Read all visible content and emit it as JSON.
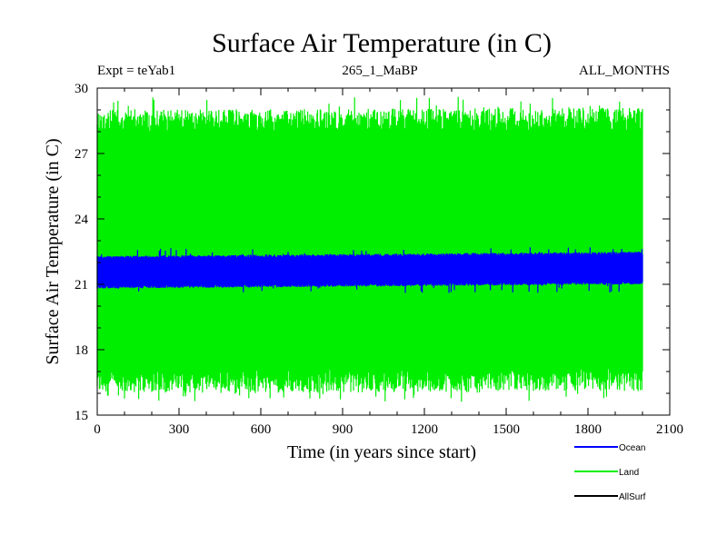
{
  "chart_data": {
    "type": "line",
    "title": "Surface Air Temperature (in C)",
    "subtitle_left": "Expt = teYab1",
    "subtitle_center": "265_1_MaBP",
    "subtitle_right": "ALL_MONTHS",
    "xlabel": "Time (in years since start)",
    "ylabel": "Surface Air Temperature (in C)",
    "xlim": [
      0,
      2100
    ],
    "ylim": [
      15,
      30
    ],
    "x_ticks": [
      0,
      300,
      600,
      900,
      1200,
      1500,
      1800,
      2100
    ],
    "x_tick_labels": [
      "0",
      "300",
      "600",
      "900",
      "1200",
      "1500",
      "1800",
      "2100"
    ],
    "y_ticks": [
      15,
      18,
      21,
      24,
      27,
      30
    ],
    "y_tick_labels": [
      "15",
      "18",
      "21",
      "24",
      "27",
      "30"
    ],
    "x_minor_step": 100,
    "y_minor_step": 1,
    "grid": false,
    "legend_position": "bottom-right",
    "series": [
      {
        "name": "Land",
        "color": "#00ee00",
        "x_range": [
          0,
          2000
        ],
        "band_low": 16.0,
        "band_high": 29.0,
        "extreme_low": 15.6,
        "extreme_high": 29.7,
        "drift": 0.1
      },
      {
        "name": "Ocean",
        "color": "#0000ff",
        "x_range": [
          0,
          2000
        ],
        "band_low": 20.8,
        "band_high": 22.3,
        "extreme_low": 20.6,
        "extreme_high": 22.7,
        "drift": 0.2
      },
      {
        "name": "AllSurf",
        "color": "#000000",
        "x_range": [
          0,
          2000
        ],
        "values": []
      }
    ],
    "legend": [
      {
        "label": "Ocean",
        "color": "#0000ff"
      },
      {
        "label": "Land",
        "color": "#00ee00"
      },
      {
        "label": "AllSurf",
        "color": "#000000"
      }
    ]
  }
}
